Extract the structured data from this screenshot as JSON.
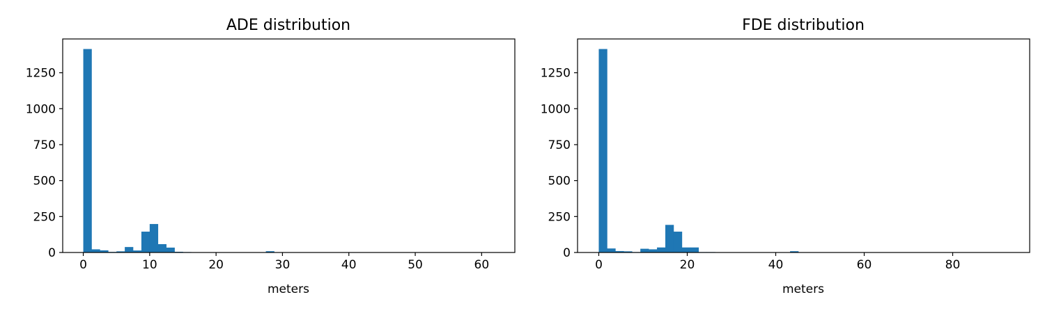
{
  "chart_data": [
    {
      "type": "bar",
      "title": "ADE distribution",
      "xlabel": "meters",
      "ylabel": "",
      "xlim": [
        -3.1,
        65.0
      ],
      "ylim": [
        0,
        1485
      ],
      "xticks": [
        0,
        10,
        20,
        30,
        40,
        50,
        60
      ],
      "yticks": [
        0,
        250,
        500,
        750,
        1000,
        1250
      ],
      "bin_width": 1.25,
      "bin_start": 0,
      "color": "#1f77b4",
      "values": [
        1415,
        22,
        15,
        4,
        8,
        38,
        14,
        145,
        198,
        58,
        34,
        5,
        3,
        2,
        2,
        2,
        2,
        2,
        2,
        2,
        2,
        2,
        9,
        2,
        2,
        2,
        2,
        2,
        2,
        2,
        2,
        2,
        2,
        2,
        2,
        2,
        2,
        2,
        2,
        2,
        2,
        2,
        2,
        2,
        2,
        2,
        2,
        2,
        2,
        2
      ]
    },
    {
      "type": "bar",
      "title": "FDE distribution",
      "xlabel": "meters",
      "ylabel": "",
      "xlim": [
        -4.8,
        97.4
      ],
      "ylim": [
        0,
        1485
      ],
      "xticks": [
        0,
        20,
        40,
        60,
        80
      ],
      "yticks": [
        0,
        250,
        500,
        750,
        1000,
        1250
      ],
      "bin_width": 1.88,
      "bin_start": 0,
      "color": "#1f77b4",
      "values": [
        1415,
        28,
        10,
        8,
        3,
        26,
        22,
        35,
        192,
        145,
        35,
        35,
        3,
        3,
        2,
        2,
        2,
        2,
        2,
        2,
        2,
        2,
        2,
        9,
        2,
        2,
        2,
        2,
        2,
        2,
        2,
        2,
        2,
        2,
        2,
        2,
        2,
        2,
        2,
        2,
        2,
        2,
        2,
        2,
        2,
        2,
        2,
        2,
        2,
        2
      ]
    }
  ]
}
